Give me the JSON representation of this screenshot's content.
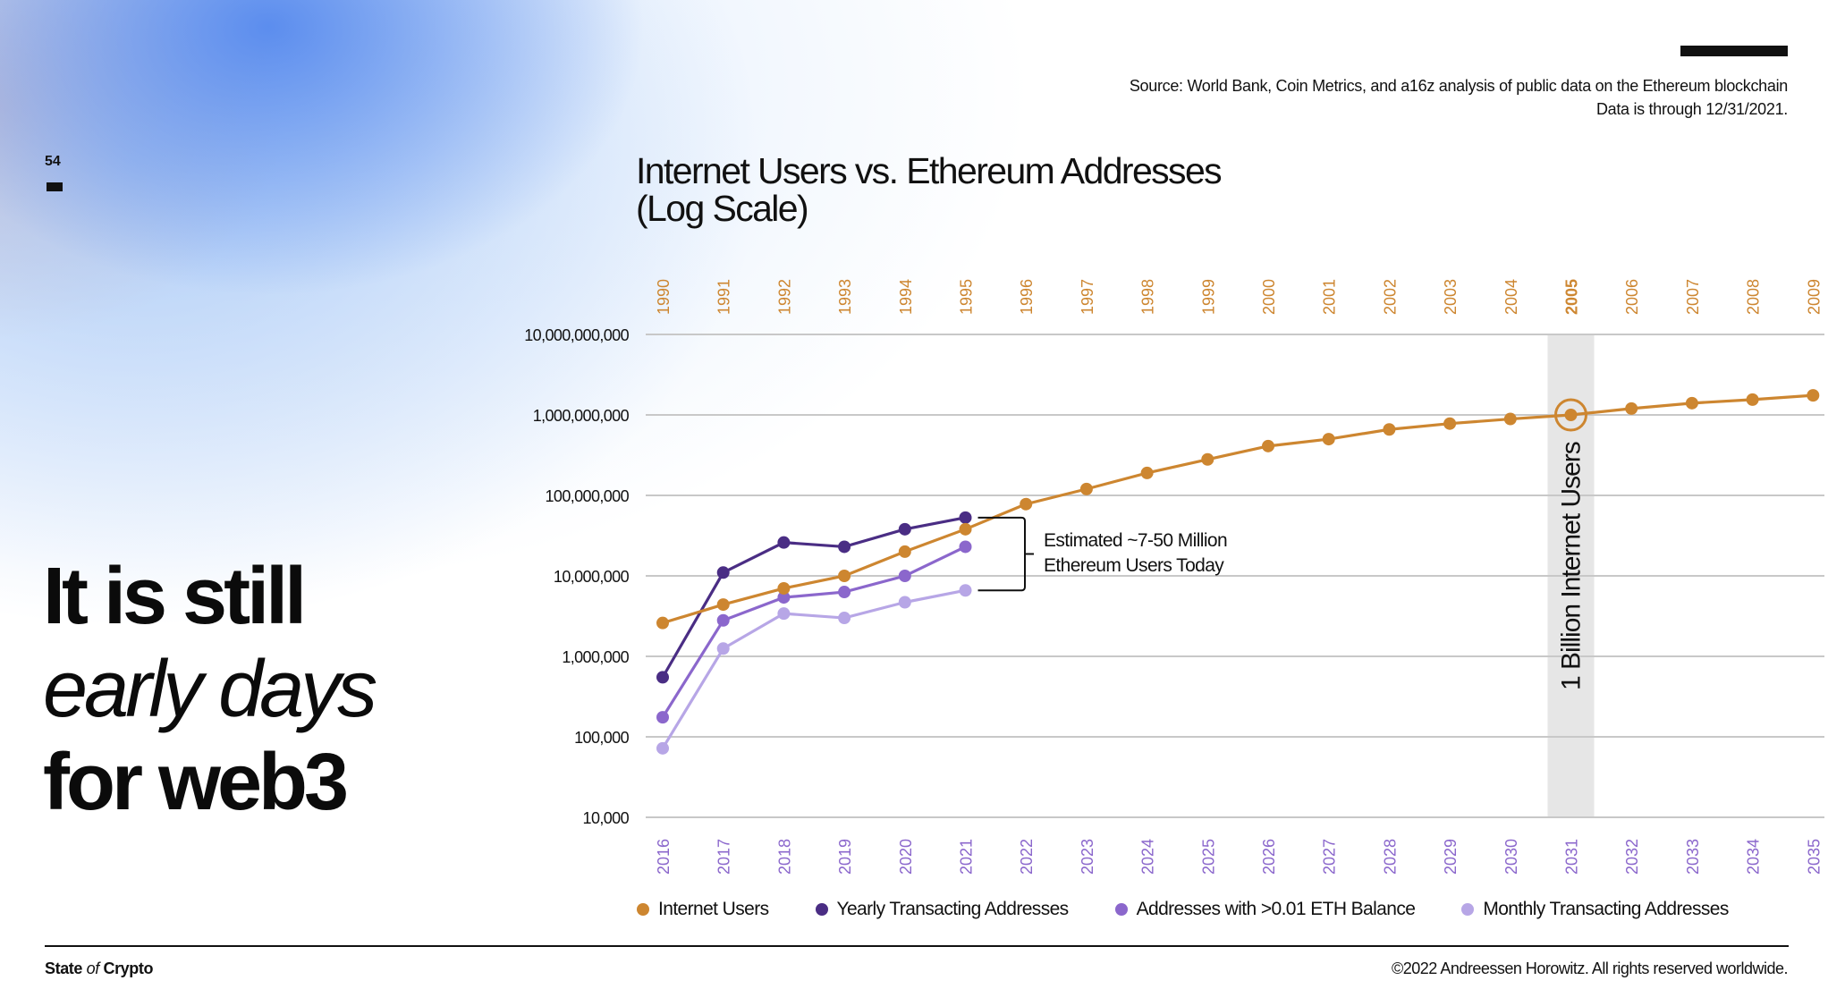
{
  "page": {
    "number": "54",
    "headline": {
      "line1": "It is still",
      "line2": "early days",
      "line3": "for web3"
    },
    "source_line1": "Source: World Bank, Coin Metrics, and a16z analysis of public data on the Ethereum blockchain",
    "source_line2": "Data is through 12/31/2021.",
    "footer": {
      "brand_state": "State",
      "brand_of": "of",
      "brand_crypto": "Crypto",
      "copyright": "©2022 Andreessen Horowitz. All rights reserved worldwide."
    }
  },
  "chart_data": {
    "type": "line",
    "title_line1": "Internet Users vs. Ethereum Addresses",
    "title_line2": "(Log Scale)",
    "y_scale": "log",
    "ylim": [
      10000,
      10000000000
    ],
    "y_ticks": [
      "10,000,000,000",
      "1,000,000,000",
      "100,000,000",
      "10,000,000",
      "1,000,000",
      "100,000",
      "10,000"
    ],
    "x_top_ticks": [
      "1990",
      "1991",
      "1992",
      "1993",
      "1994",
      "1995",
      "1996",
      "1997",
      "1998",
      "1999",
      "2000",
      "2001",
      "2002",
      "2003",
      "2004",
      "2005",
      "2006",
      "2007",
      "2008",
      "2009"
    ],
    "x_bottom_ticks": [
      "2016",
      "2017",
      "2018",
      "2019",
      "2020",
      "2021",
      "2022",
      "2023",
      "2024",
      "2025",
      "2026",
      "2027",
      "2028",
      "2029",
      "2030",
      "2031",
      "2032",
      "2033",
      "2034",
      "2035"
    ],
    "highlight_index": 15,
    "highlight_label": "1 Billion Internet Users",
    "annotation": {
      "line1": "Estimated ~7-50 Million",
      "line2": "Ethereum Users Today"
    },
    "grid": true,
    "legend_position": "bottom",
    "series": [
      {
        "name": "Internet Users",
        "color": "#cd8630",
        "axis": "top",
        "values": [
          2600000,
          4400000,
          7000000,
          10000000,
          20000000,
          38000000,
          78000000,
          120000000,
          190000000,
          280000000,
          410000000,
          500000000,
          660000000,
          780000000,
          890000000,
          1000000000,
          1200000000,
          1400000000,
          1550000000,
          1750000000
        ]
      },
      {
        "name": "Yearly Transacting Addresses",
        "color": "#4a2d84",
        "axis": "bottom",
        "values": [
          550000,
          11000000,
          26000000,
          23000000,
          38000000,
          53000000
        ]
      },
      {
        "name": "Addresses with >0.01 ETH Balance",
        "color": "#8b67cc",
        "axis": "bottom",
        "values": [
          175000,
          2800000,
          5400000,
          6300000,
          10000000,
          23000000
        ]
      },
      {
        "name": "Monthly Transacting Addresses",
        "color": "#b7a6e6",
        "axis": "bottom",
        "values": [
          72000,
          1250000,
          3400000,
          3000000,
          4700000,
          6600000
        ]
      }
    ],
    "tick_colors": {
      "top": "#cd8630",
      "bottom": "#8b67cc"
    }
  }
}
